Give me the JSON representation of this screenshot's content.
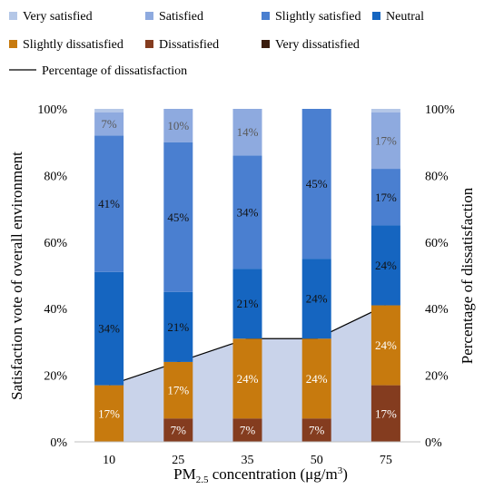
{
  "chart_data": {
    "type": "bar",
    "stacked": true,
    "xlabel": "PM",
    "xlabel_sub": "2.5",
    "xlabel_tail": " concentration  (μg/m",
    "xlabel_sup": "3",
    "xlabel_end": ")",
    "ylabel": "Satisfaction vote of overall environment",
    "y2label": "Percentage of dissatisfaction",
    "ylim": [
      0,
      100
    ],
    "yticks": [
      "0%",
      "20%",
      "40%",
      "60%",
      "80%",
      "100%"
    ],
    "categories": [
      "10",
      "25",
      "35",
      "50",
      "75"
    ],
    "legend_position": "top",
    "series": [
      {
        "name": "Very dissatisfied",
        "color": "#3b1d0e",
        "values": [
          0,
          0,
          0,
          0,
          0
        ],
        "labels": [
          "",
          "",
          "",
          "",
          ""
        ]
      },
      {
        "name": "Dissatisfied",
        "color": "#843c1f",
        "values": [
          0,
          7,
          7,
          7,
          17
        ],
        "labels": [
          "",
          "7%",
          "7%",
          "7%",
          "17%"
        ]
      },
      {
        "name": "Slightly dissatisfied",
        "color": "#c77a0e",
        "values": [
          17,
          17,
          24,
          24,
          24
        ],
        "labels": [
          "17%",
          "17%",
          "24%",
          "24%",
          "24%"
        ]
      },
      {
        "name": "Neutral",
        "color": "#1565c0",
        "values": [
          34,
          21,
          21,
          24,
          24
        ],
        "labels": [
          "34%",
          "21%",
          "21%",
          "24%",
          "24%"
        ]
      },
      {
        "name": "Slightly satisfied",
        "color": "#4a7fd0",
        "values": [
          41,
          45,
          34,
          45,
          17
        ],
        "labels": [
          "41%",
          "45%",
          "34%",
          "45%",
          "17%"
        ]
      },
      {
        "name": "Satisfied",
        "color": "#8eaadf",
        "values": [
          7,
          10,
          14,
          0,
          17
        ],
        "labels": [
          "7%",
          "10%",
          "14%",
          "",
          "17%"
        ]
      },
      {
        "name": "Very satisfied",
        "color": "#b4c7e7",
        "values": [
          1,
          0,
          0,
          0,
          1
        ],
        "labels": [
          "",
          "",
          "",
          "",
          ""
        ]
      }
    ],
    "line": {
      "name": "Percentage of dissatisfaction",
      "values": [
        17,
        24,
        31,
        31,
        41
      ],
      "fill": "#c9d3ea",
      "stroke": "#000000"
    }
  }
}
